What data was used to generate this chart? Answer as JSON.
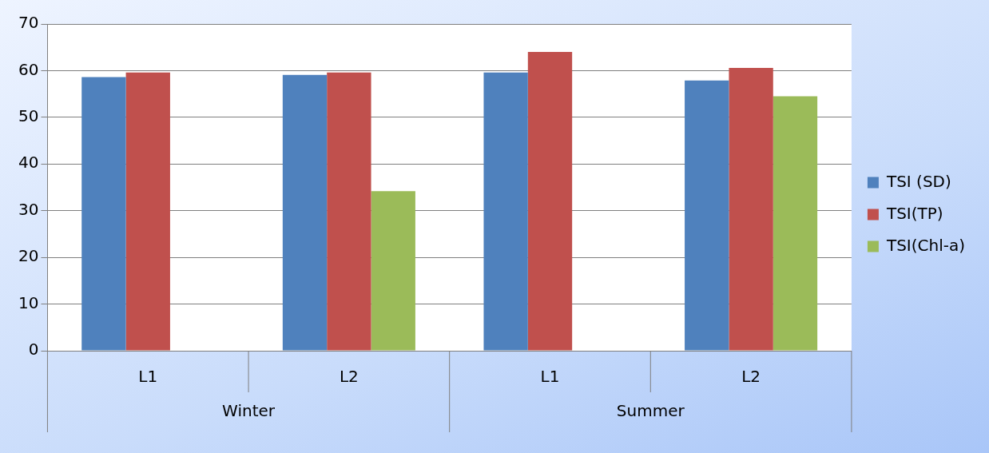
{
  "chart_data": {
    "type": "bar",
    "categories": [
      "L1",
      "L2",
      "L1",
      "L2"
    ],
    "annotations": [
      "Winter",
      "Summer"
    ],
    "series": [
      {
        "name": "TSI (SD)",
        "color": "#4f81bd",
        "values": [
          58.6,
          59.1,
          59.6,
          57.9
        ]
      },
      {
        "name": "TSI(TP)",
        "color": "#c0504d",
        "values": [
          59.6,
          59.6,
          64.0,
          60.6
        ]
      },
      {
        "name": "TSI(Chl-a)",
        "color": "#9bbb59",
        "values": [
          null,
          34.2,
          null,
          54.5
        ]
      }
    ],
    "ylim": [
      0,
      70
    ],
    "yticks": [
      0,
      10,
      20,
      30,
      40,
      50,
      60,
      70
    ],
    "grid": "y",
    "legend": "right"
  }
}
